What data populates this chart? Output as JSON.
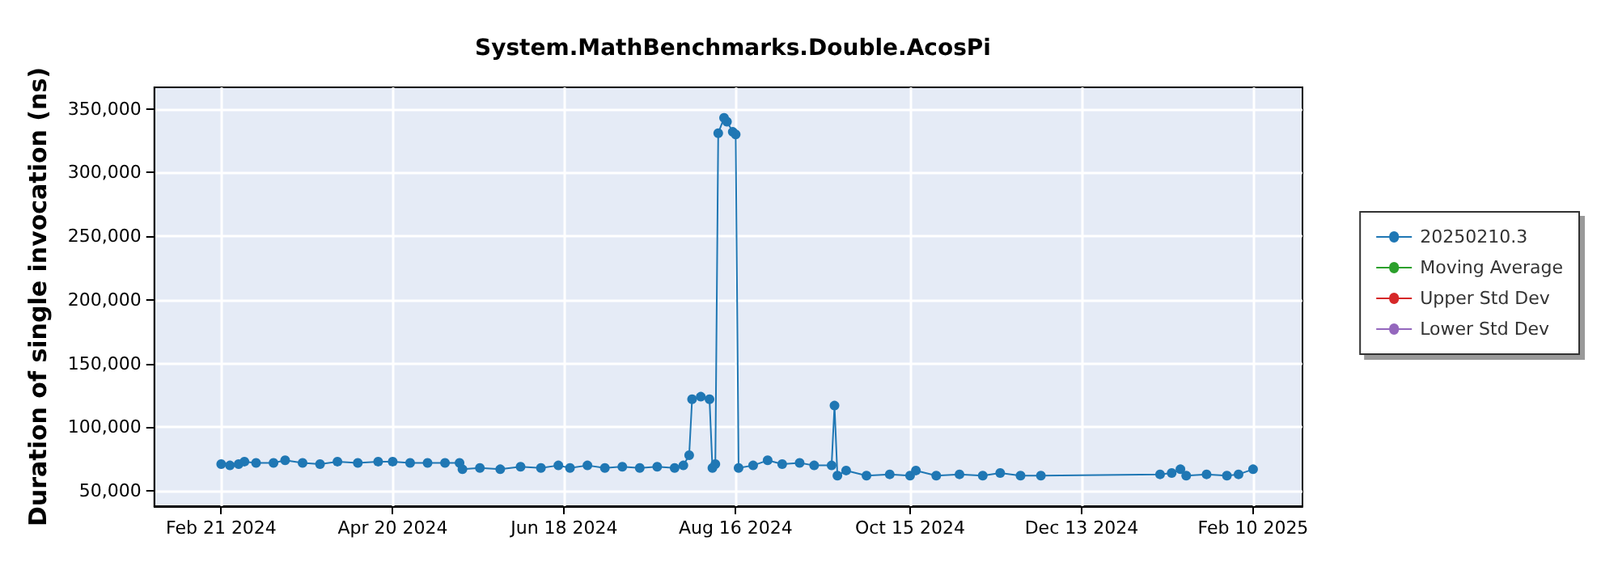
{
  "chart_data": {
    "type": "line",
    "title": "System.MathBenchmarks.Double.AcosPi",
    "ylabel": "Duration of single invocation (ns)",
    "xlim": [
      "2024-01-29",
      "2025-02-27"
    ],
    "xticks": [
      {
        "value": "2024-02-21",
        "label": "Feb 21 2024"
      },
      {
        "value": "2024-04-20",
        "label": "Apr 20 2024"
      },
      {
        "value": "2024-06-18",
        "label": "Jun 18 2024"
      },
      {
        "value": "2024-08-16",
        "label": "Aug 16 2024"
      },
      {
        "value": "2024-10-15",
        "label": "Oct 15 2024"
      },
      {
        "value": "2024-12-13",
        "label": "Dec 13 2024"
      },
      {
        "value": "2025-02-10",
        "label": "Feb 10 2025"
      }
    ],
    "ylim": [
      38000,
      367000
    ],
    "yticks": [
      {
        "value": 50000,
        "label": "50,000"
      },
      {
        "value": 100000,
        "label": "100,000"
      },
      {
        "value": 150000,
        "label": "150,000"
      },
      {
        "value": 200000,
        "label": "200,000"
      },
      {
        "value": 250000,
        "label": "250,000"
      },
      {
        "value": 300000,
        "label": "300,000"
      },
      {
        "value": 350000,
        "label": "350,000"
      }
    ],
    "grid": true,
    "legend": "right",
    "marker": "circle",
    "line_style": "solid",
    "series": [
      {
        "name": "20250210.3",
        "color": "#1f77b4",
        "x": [
          "2024-02-21",
          "2024-02-24",
          "2024-02-27",
          "2024-02-29",
          "2024-03-04",
          "2024-03-10",
          "2024-03-14",
          "2024-03-20",
          "2024-03-26",
          "2024-04-01",
          "2024-04-08",
          "2024-04-15",
          "2024-04-20",
          "2024-04-26",
          "2024-05-02",
          "2024-05-08",
          "2024-05-13",
          "2024-05-14",
          "2024-05-20",
          "2024-05-27",
          "2024-06-03",
          "2024-06-10",
          "2024-06-16",
          "2024-06-20",
          "2024-06-26",
          "2024-07-02",
          "2024-07-08",
          "2024-07-14",
          "2024-07-20",
          "2024-07-26",
          "2024-07-29",
          "2024-07-31",
          "2024-08-01",
          "2024-08-04",
          "2024-08-07",
          "2024-08-08",
          "2024-08-09",
          "2024-08-10",
          "2024-08-12",
          "2024-08-13",
          "2024-08-15",
          "2024-08-16",
          "2024-08-17",
          "2024-08-22",
          "2024-08-27",
          "2024-09-01",
          "2024-09-07",
          "2024-09-12",
          "2024-09-18",
          "2024-09-19",
          "2024-09-20",
          "2024-09-23",
          "2024-09-30",
          "2024-10-08",
          "2024-10-15",
          "2024-10-17",
          "2024-10-24",
          "2024-11-01",
          "2024-11-09",
          "2024-11-15",
          "2024-11-22",
          "2024-11-29",
          "2025-01-09",
          "2025-01-13",
          "2025-01-16",
          "2025-01-18",
          "2025-01-25",
          "2025-02-01",
          "2025-02-05",
          "2025-02-10"
        ],
        "values": [
          71000,
          70000,
          71000,
          73000,
          72000,
          72000,
          74000,
          72000,
          71000,
          73000,
          72000,
          73000,
          73000,
          72000,
          72000,
          72000,
          72000,
          67000,
          68000,
          67000,
          69000,
          68000,
          70000,
          68000,
          70000,
          68000,
          69000,
          68000,
          69000,
          68000,
          70000,
          78000,
          122000,
          124000,
          122000,
          68000,
          71000,
          331000,
          343000,
          340000,
          332000,
          330000,
          68000,
          70000,
          74000,
          71000,
          72000,
          70000,
          70000,
          117000,
          62000,
          66000,
          62000,
          63000,
          62000,
          66000,
          62000,
          63000,
          62000,
          64000,
          62000,
          62000,
          63000,
          64000,
          67000,
          62000,
          63000,
          62000,
          63000,
          67000
        ]
      },
      {
        "name": "Moving Average",
        "color": "#2ca02c"
      },
      {
        "name": "Upper Std Dev",
        "color": "#d62728"
      },
      {
        "name": "Lower Std Dev",
        "color": "#9467bd"
      }
    ]
  }
}
